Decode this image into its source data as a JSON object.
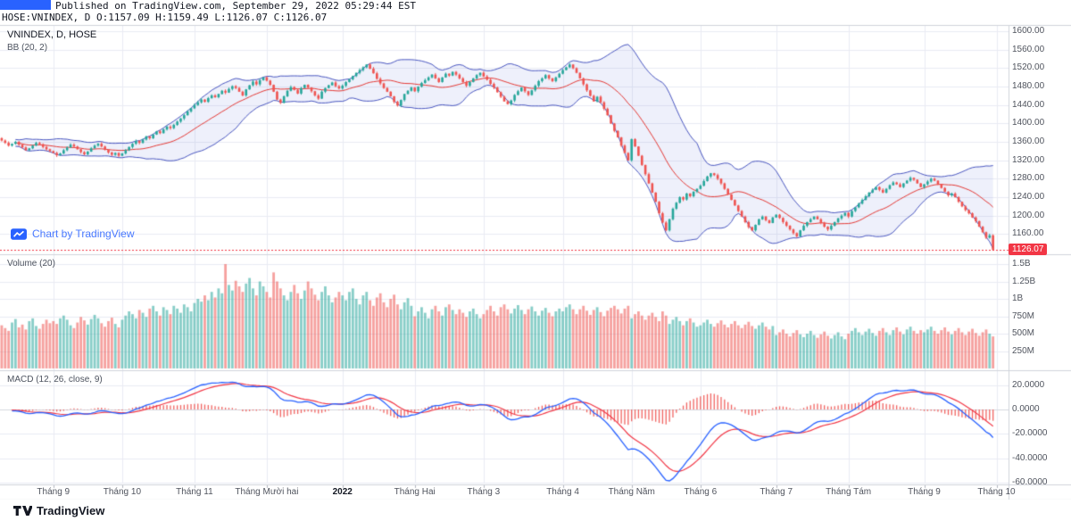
{
  "header": {
    "published_line": "Published on TradingView.com, September 29, 2022 05:29:44 EST",
    "symbol_line": "HOSE:VNINDEX, D O:1157.09 H:1159.49 L:1126.07 C:1126.07"
  },
  "main_pane": {
    "legend_symbol": "VNINDEX, D, HOSE",
    "legend_bb": "BB (20, 2)",
    "watermark": "Chart by TradingView",
    "last_price_label": "1126.07"
  },
  "volume_pane": {
    "legend": "Volume (20)"
  },
  "macd_pane": {
    "legend": "MACD (12, 26, close, 9)"
  },
  "footer": {
    "brand": "TradingView"
  },
  "colors": {
    "up": "#26a69a",
    "down": "#ef5350",
    "bb_band": "#4a57c1",
    "bb_basis": "#e53935",
    "bb_fill": "rgba(93,105,212,0.10)",
    "macd_line": "#2962ff",
    "macd_signal": "#f23645",
    "macd_hist": "#ef5350",
    "last_price": "#f23645",
    "watermark_blue": "#2962ff",
    "grid": "#e9ebf3",
    "separator": "#d1d4dc",
    "tick": "#b2b5be"
  },
  "chart_data": {
    "type": "candlestick",
    "title": "HOSE:VNINDEX, Daily, with BB(20,2), Volume(20) and MACD(12,26,close,9)",
    "symbol": "VNINDEX",
    "exchange": "HOSE",
    "interval": "D",
    "last_ohlc": {
      "open": 1157.09,
      "high": 1159.49,
      "low": 1126.07,
      "close": 1126.07
    },
    "price_axis_range": [
      1120,
      1610
    ],
    "volume_axis_range_millions": [
      0,
      1650
    ],
    "macd_axis_range": [
      -62,
      33
    ],
    "bars_total_slots": 293,
    "price_axis_ticks": [
      {
        "label": "1600.00",
        "value": 1600
      },
      {
        "label": "1560.00",
        "value": 1560
      },
      {
        "label": "1520.00",
        "value": 1520
      },
      {
        "label": "1480.00",
        "value": 1480
      },
      {
        "label": "1440.00",
        "value": 1440
      },
      {
        "label": "1400.00",
        "value": 1400
      },
      {
        "label": "1360.00",
        "value": 1360
      },
      {
        "label": "1320.00",
        "value": 1320
      },
      {
        "label": "1280.00",
        "value": 1280
      },
      {
        "label": "1240.00",
        "value": 1240
      },
      {
        "label": "1200.00",
        "value": 1200
      },
      {
        "label": "1160.00",
        "value": 1160
      }
    ],
    "volume_axis_ticks": [
      {
        "label": "1.5B",
        "value": 1500
      },
      {
        "label": "1.25B",
        "value": 1250
      },
      {
        "label": "1B",
        "value": 1000
      },
      {
        "label": "750M",
        "value": 750
      },
      {
        "label": "500M",
        "value": 500
      },
      {
        "label": "250M",
        "value": 250
      }
    ],
    "macd_axis_ticks": [
      {
        "label": "20.0000",
        "value": 20
      },
      {
        "label": "0.0000",
        "value": 0
      },
      {
        "label": "-20.0000",
        "value": -20
      },
      {
        "label": "-40.0000",
        "value": -40
      },
      {
        "label": "-60.0000",
        "value": -60
      }
    ],
    "time_axis_ticks": [
      {
        "label": "Tháng 9",
        "bar": 15
      },
      {
        "label": "Tháng 10",
        "bar": 35
      },
      {
        "label": "Tháng 11",
        "bar": 56
      },
      {
        "label": "Tháng Mười hai",
        "bar": 77
      },
      {
        "label": "2022",
        "bar": 99,
        "strong": true
      },
      {
        "label": "Tháng Hai",
        "bar": 120
      },
      {
        "label": "Tháng 3",
        "bar": 140
      },
      {
        "label": "Tháng 4",
        "bar": 163
      },
      {
        "label": "Tháng Năm",
        "bar": 183
      },
      {
        "label": "Tháng 6",
        "bar": 203
      },
      {
        "label": "Tháng 7",
        "bar": 225
      },
      {
        "label": "Tháng Tám",
        "bar": 246
      },
      {
        "label": "Tháng 9",
        "bar": 268
      },
      {
        "label": "Tháng 10",
        "bar": 289
      }
    ],
    "indicators": {
      "bollinger": {
        "length": 20,
        "stdev": 2
      },
      "volume_ma_length": 20,
      "macd": {
        "fast": 12,
        "slow": 26,
        "source": "close",
        "signal": 9
      }
    },
    "closes": [
      1363,
      1358,
      1352,
      1356,
      1360,
      1354,
      1348,
      1342,
      1346,
      1352,
      1358,
      1355,
      1349,
      1344,
      1340,
      1336,
      1331,
      1335,
      1342,
      1348,
      1354,
      1350,
      1344,
      1338,
      1333,
      1339,
      1346,
      1352,
      1356,
      1350,
      1343,
      1337,
      1332,
      1336,
      1330,
      1335,
      1342,
      1349,
      1356,
      1362,
      1358,
      1365,
      1372,
      1368,
      1376,
      1383,
      1379,
      1387,
      1393,
      1390,
      1397,
      1404,
      1411,
      1418,
      1426,
      1433,
      1440,
      1446,
      1452,
      1447,
      1455,
      1461,
      1457,
      1464,
      1471,
      1467,
      1475,
      1481,
      1477,
      1469,
      1461,
      1474,
      1483,
      1491,
      1485,
      1494,
      1500,
      1493,
      1484,
      1469,
      1452,
      1445,
      1459,
      1471,
      1479,
      1473,
      1465,
      1477,
      1484,
      1478,
      1470,
      1461,
      1454,
      1469,
      1477,
      1483,
      1489,
      1481,
      1476,
      1482,
      1490,
      1496,
      1503,
      1510,
      1516,
      1522,
      1528,
      1519,
      1509,
      1497,
      1487,
      1477,
      1469,
      1459,
      1447,
      1439,
      1451,
      1464,
      1471,
      1478,
      1470,
      1480,
      1488,
      1494,
      1500,
      1506,
      1498,
      1490,
      1500,
      1508,
      1504,
      1512,
      1506,
      1498,
      1490,
      1482,
      1490,
      1498,
      1505,
      1510,
      1502,
      1495,
      1486,
      1478,
      1468,
      1458,
      1448,
      1442,
      1450,
      1462,
      1470,
      1478,
      1470,
      1462,
      1472,
      1482,
      1492,
      1498,
      1505,
      1498,
      1492,
      1500,
      1508,
      1516,
      1522,
      1528,
      1520,
      1510,
      1498,
      1485,
      1472,
      1460,
      1448,
      1458,
      1446,
      1432,
      1418,
      1400,
      1384,
      1370,
      1352,
      1336,
      1320,
      1366,
      1350,
      1330,
      1310,
      1290,
      1270,
      1250,
      1230,
      1205,
      1185,
      1168,
      1192,
      1215,
      1228,
      1240,
      1235,
      1248,
      1242,
      1252,
      1258,
      1265,
      1275,
      1285,
      1292,
      1288,
      1280,
      1270,
      1258,
      1246,
      1234,
      1222,
      1210,
      1198,
      1186,
      1175,
      1168,
      1180,
      1192,
      1198,
      1190,
      1184,
      1196,
      1202,
      1195,
      1186,
      1178,
      1170,
      1162,
      1155,
      1168,
      1178,
      1186,
      1192,
      1198,
      1192,
      1184,
      1176,
      1170,
      1178,
      1186,
      1194,
      1200,
      1206,
      1198,
      1210,
      1218,
      1226,
      1234,
      1242,
      1250,
      1256,
      1262,
      1256,
      1250,
      1258,
      1266,
      1272,
      1268,
      1262,
      1270,
      1276,
      1282,
      1278,
      1270,
      1262,
      1268,
      1274,
      1280,
      1276,
      1268,
      1260,
      1252,
      1244,
      1248,
      1240,
      1230,
      1220,
      1212,
      1205,
      1196,
      1188,
      1176,
      1164,
      1152,
      1157.09,
      1126.07
    ],
    "volumes_millions": [
      620,
      580,
      540,
      660,
      710,
      590,
      630,
      560,
      680,
      720,
      610,
      570,
      640,
      700,
      650,
      680,
      640,
      720,
      760,
      700,
      620,
      580,
      660,
      740,
      690,
      630,
      710,
      770,
      720,
      650,
      600,
      680,
      730,
      640,
      590,
      700,
      760,
      820,
      780,
      720,
      840,
      800,
      740,
      860,
      900,
      820,
      760,
      880,
      840,
      780,
      900,
      860,
      800,
      920,
      880,
      820,
      940,
      1000,
      960,
      1050,
      980,
      1100,
      1020,
      1150,
      1080,
      1500,
      1200,
      1120,
      1260,
      1180,
      1100,
      1220,
      1300,
      1150,
      1050,
      1250,
      1180,
      1100,
      1020,
      1380,
      1250,
      1150,
      1050,
      980,
      1100,
      1200,
      1080,
      1000,
      1120,
      1250,
      1150,
      1060,
      980,
      1100,
      1180,
      1050,
      950,
      1020,
      1100,
      1050,
      980,
      1100,
      1150,
      1000,
      920,
      1050,
      1100,
      980,
      900,
      1020,
      1080,
      950,
      880,
      1000,
      1060,
      920,
      850,
      950,
      1010,
      900,
      750,
      820,
      880,
      800,
      720,
      850,
      900,
      820,
      760,
      880,
      920,
      840,
      780,
      850,
      800,
      740,
      820,
      860,
      780,
      720,
      780,
      840,
      900,
      820,
      760,
      880,
      920,
      850,
      790,
      860,
      910,
      840,
      780,
      850,
      890,
      820,
      760,
      830,
      870,
      800,
      750,
      820,
      860,
      820,
      880,
      920,
      850,
      780,
      850,
      900,
      830,
      770,
      840,
      880,
      810,
      750,
      830,
      870,
      900,
      850,
      790,
      860,
      900,
      720,
      780,
      820,
      760,
      700,
      760,
      800,
      740,
      680,
      820,
      760,
      640,
      700,
      740,
      680,
      620,
      680,
      720,
      660,
      600,
      620,
      660,
      700,
      640,
      600,
      650,
      690,
      630,
      590,
      640,
      680,
      620,
      580,
      630,
      670,
      610,
      570,
      620,
      660,
      600,
      560,
      610,
      480,
      520,
      560,
      500,
      460,
      510,
      550,
      490,
      450,
      500,
      540,
      480,
      440,
      490,
      530,
      470,
      430,
      480,
      520,
      460,
      420,
      500,
      540,
      580,
      520,
      480,
      530,
      570,
      510,
      470,
      540,
      580,
      520,
      480,
      550,
      590,
      530,
      490,
      560,
      600,
      540,
      500,
      550,
      520,
      560,
      600,
      540,
      500,
      550,
      590,
      530,
      490,
      540,
      580,
      520,
      480,
      530,
      570,
      510,
      470,
      520,
      560,
      500,
      460
    ]
  }
}
